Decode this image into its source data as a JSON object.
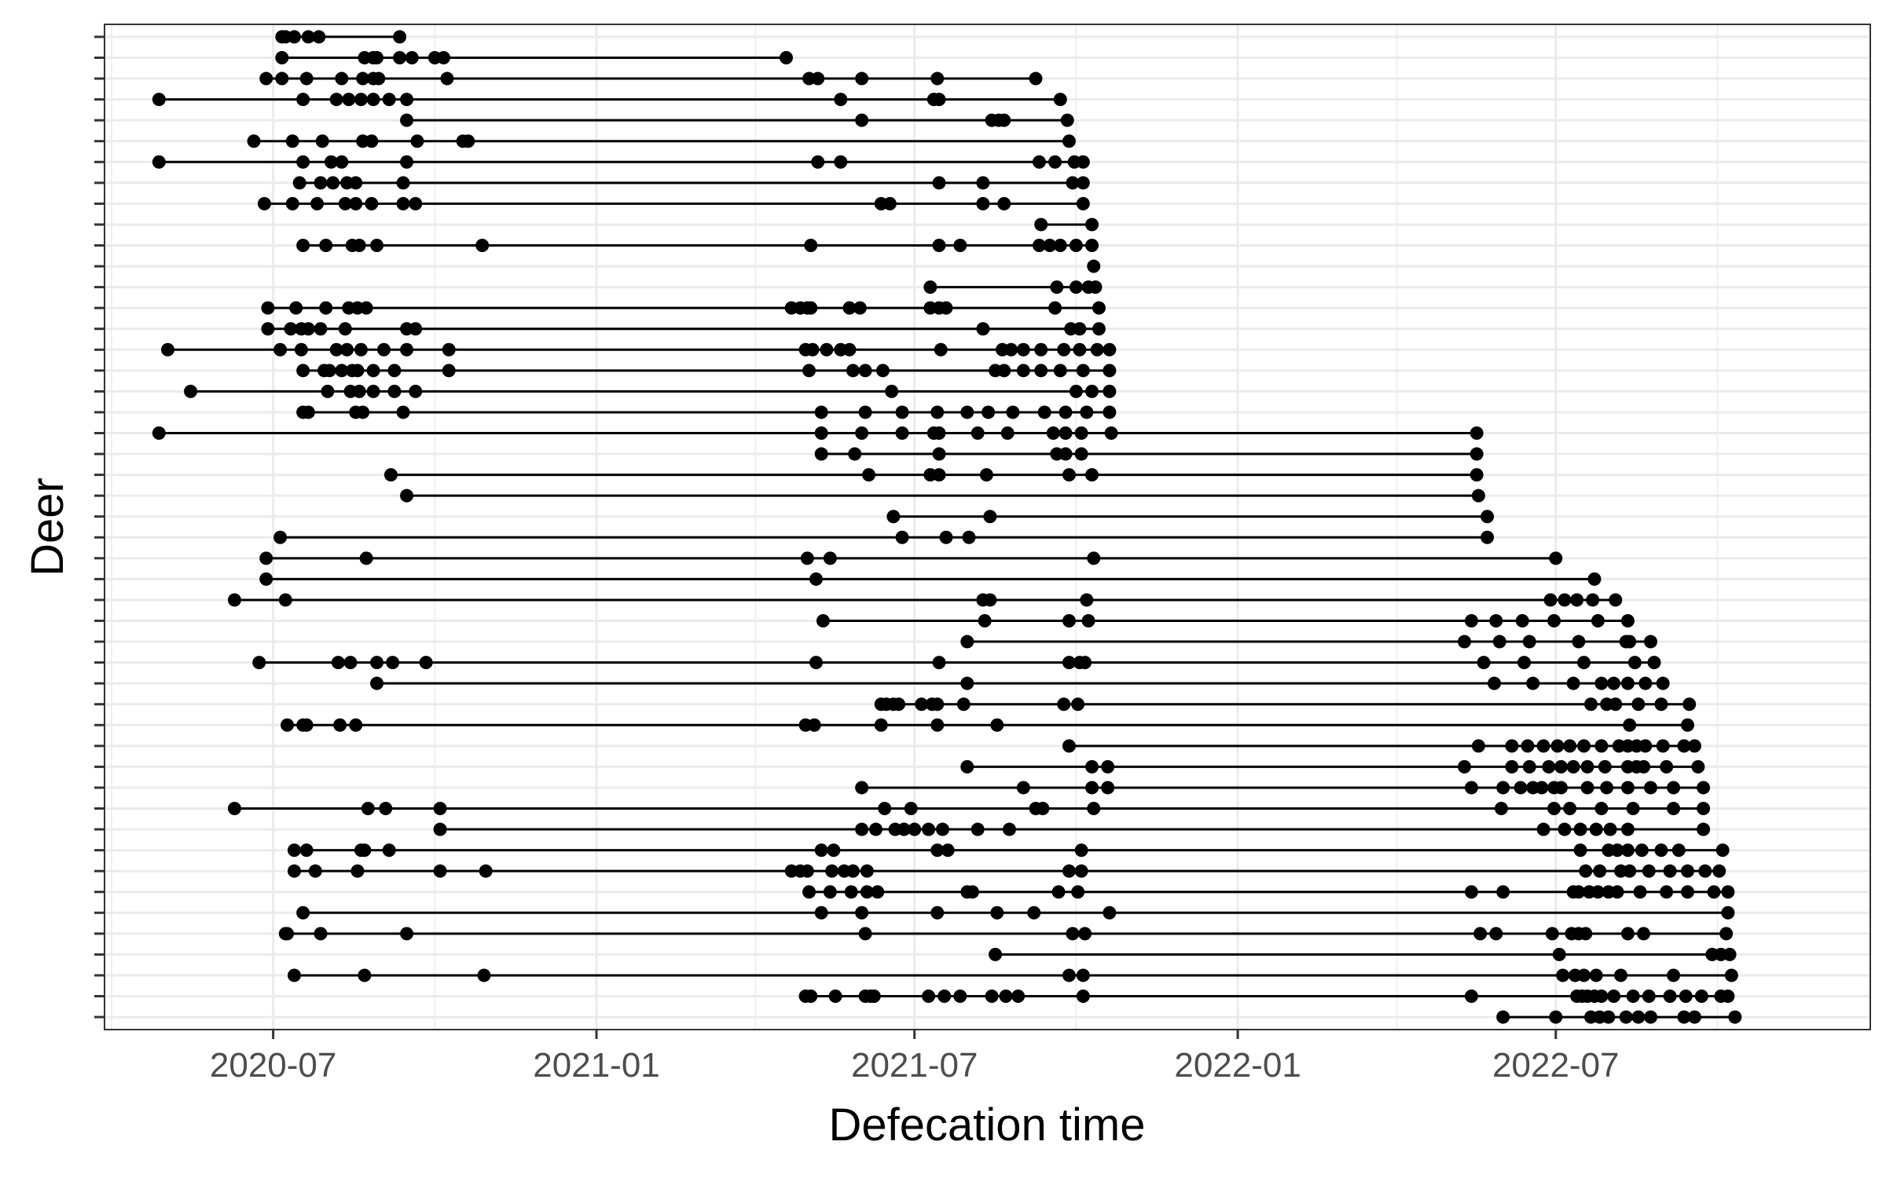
{
  "chart_data": {
    "type": "scatter",
    "title": "",
    "xlabel": "Defecation time",
    "ylabel": "Deer",
    "x_ticks": [
      "2020-07",
      "2021-01",
      "2021-07",
      "2022-01",
      "2022-07"
    ],
    "x_tick_dates": [
      "2020-07-01",
      "2021-01-01",
      "2021-07-01",
      "2022-01-01",
      "2022-07-01"
    ],
    "xlim": [
      "2020-03-27",
      "2022-12-27"
    ],
    "y_tick_labels_visible": false,
    "grid": true,
    "legend": "none",
    "colors": {
      "point": "#000000",
      "line": "#000000",
      "grid": "#ebebeb",
      "panel_border": "#333333",
      "tick_label": "#4d4d4d"
    },
    "series": [
      {
        "x": [
          "2020-07-06",
          "2020-07-08",
          "2020-07-13",
          "2020-07-21",
          "2020-07-27",
          "2020-09-11"
        ]
      },
      {
        "x": [
          "2020-07-06",
          "2020-08-22",
          "2020-08-27",
          "2020-08-29",
          "2020-09-11",
          "2020-09-18",
          "2020-10-01",
          "2020-10-06",
          "2021-04-19"
        ]
      },
      {
        "x": [
          "2020-06-27",
          "2020-07-06",
          "2020-07-20",
          "2020-08-09",
          "2020-08-21",
          "2020-08-27",
          "2020-08-30",
          "2020-10-08",
          "2021-05-02",
          "2021-05-07",
          "2021-06-01",
          "2021-07-14",
          "2021-09-08"
        ]
      },
      {
        "x": [
          "2020-04-27",
          "2020-07-18",
          "2020-08-06",
          "2020-08-13",
          "2020-08-20",
          "2020-08-27",
          "2020-09-05",
          "2020-09-15",
          "2021-05-20",
          "2021-07-12",
          "2021-07-15",
          "2021-09-22"
        ]
      },
      {
        "x": [
          "2020-09-15",
          "2021-06-01",
          "2021-08-14",
          "2021-08-18",
          "2021-08-21",
          "2021-09-26"
        ]
      },
      {
        "x": [
          "2020-06-20",
          "2020-07-12",
          "2020-07-29",
          "2020-08-21",
          "2020-08-26",
          "2020-09-21",
          "2020-10-17",
          "2020-10-20",
          "2021-09-27"
        ]
      },
      {
        "x": [
          "2020-04-27",
          "2020-07-18",
          "2020-08-03",
          "2020-08-09",
          "2020-09-15",
          "2021-05-07",
          "2021-05-20",
          "2021-09-10",
          "2021-09-19",
          "2021-09-30",
          "2021-10-05"
        ]
      },
      {
        "x": [
          "2020-07-16",
          "2020-07-28",
          "2020-08-04",
          "2020-08-12",
          "2020-08-17",
          "2020-09-13",
          "2021-07-15",
          "2021-08-09",
          "2021-09-29",
          "2021-10-05"
        ]
      },
      {
        "x": [
          "2020-06-26",
          "2020-07-12",
          "2020-07-26",
          "2020-08-11",
          "2020-08-17",
          "2020-08-26",
          "2020-09-13",
          "2020-09-20",
          "2021-06-12",
          "2021-06-17",
          "2021-08-09",
          "2021-08-21",
          "2021-10-05"
        ]
      },
      {
        "x": [
          "2021-09-11",
          "2021-10-10"
        ]
      },
      {
        "x": [
          "2020-07-18",
          "2020-07-31",
          "2020-08-15",
          "2020-08-19",
          "2020-08-29",
          "2020-10-28",
          "2021-05-03",
          "2021-07-15",
          "2021-07-27",
          "2021-09-10",
          "2021-09-16",
          "2021-09-22",
          "2021-10-01",
          "2021-10-10"
        ]
      },
      {
        "x": [
          "2021-10-11"
        ]
      },
      {
        "x": [
          "2021-07-10",
          "2021-09-20",
          "2021-10-01",
          "2021-10-08",
          "2021-10-12"
        ]
      },
      {
        "x": [
          "2020-06-28",
          "2020-07-14",
          "2020-07-31",
          "2020-08-13",
          "2020-08-18",
          "2020-08-23",
          "2021-04-22",
          "2021-04-27",
          "2021-05-01",
          "2021-05-03",
          "2021-05-25",
          "2021-05-31",
          "2021-07-10",
          "2021-07-15",
          "2021-07-19",
          "2021-09-19",
          "2021-10-14"
        ]
      },
      {
        "x": [
          "2020-06-28",
          "2020-07-11",
          "2020-07-17",
          "2020-07-21",
          "2020-07-28",
          "2020-08-11",
          "2020-09-15",
          "2020-09-20",
          "2021-08-09",
          "2021-09-28",
          "2021-10-03",
          "2021-10-14"
        ]
      },
      {
        "x": [
          "2020-05-02",
          "2020-07-05",
          "2020-07-17",
          "2020-08-06",
          "2020-08-12",
          "2020-08-20",
          "2020-09-02",
          "2020-09-15",
          "2020-10-09",
          "2021-04-30",
          "2021-05-04",
          "2021-05-12",
          "2021-05-20",
          "2021-05-25",
          "2021-07-16",
          "2021-08-20",
          "2021-08-25",
          "2021-09-01",
          "2021-09-11",
          "2021-09-24",
          "2021-10-03",
          "2021-10-13",
          "2021-10-20"
        ]
      },
      {
        "x": [
          "2020-07-18",
          "2020-07-30",
          "2020-08-02",
          "2020-08-09",
          "2020-08-15",
          "2020-08-18",
          "2020-08-27",
          "2020-09-08",
          "2020-10-09",
          "2021-05-02",
          "2021-05-27",
          "2021-06-03",
          "2021-06-13",
          "2021-08-16",
          "2021-08-21",
          "2021-09-01",
          "2021-09-11",
          "2021-09-22",
          "2021-10-05",
          "2021-10-20"
        ]
      },
      {
        "x": [
          "2020-05-15",
          "2020-08-01",
          "2020-08-14",
          "2020-08-19",
          "2020-08-27",
          "2020-09-08",
          "2020-09-20",
          "2021-06-18",
          "2021-10-01",
          "2021-10-10",
          "2021-10-20"
        ]
      },
      {
        "x": [
          "2020-07-18",
          "2020-07-21",
          "2020-08-17",
          "2020-08-21",
          "2020-09-13",
          "2021-05-09",
          "2021-06-03",
          "2021-06-24",
          "2021-07-14",
          "2021-07-31",
          "2021-08-12",
          "2021-08-26",
          "2021-09-13",
          "2021-09-25",
          "2021-10-07",
          "2021-10-20"
        ]
      },
      {
        "x": [
          "2020-04-27",
          "2021-05-09",
          "2021-06-01",
          "2021-06-24",
          "2021-07-12",
          "2021-07-15",
          "2021-08-06",
          "2021-08-23",
          "2021-09-18",
          "2021-09-25",
          "2021-10-04",
          "2021-10-21",
          "2022-05-17"
        ]
      },
      {
        "x": [
          "2021-05-09",
          "2021-05-28",
          "2021-07-15",
          "2021-09-20",
          "2021-09-25",
          "2021-10-04",
          "2022-05-17"
        ]
      },
      {
        "x": [
          "2020-09-06",
          "2021-06-05",
          "2021-07-10",
          "2021-07-15",
          "2021-08-11",
          "2021-09-27",
          "2021-10-10",
          "2022-05-17"
        ]
      },
      {
        "x": [
          "2020-09-15",
          "2022-05-18"
        ]
      },
      {
        "x": [
          "2021-06-19",
          "2021-08-13",
          "2022-05-23"
        ]
      },
      {
        "x": [
          "2020-07-05",
          "2021-06-24",
          "2021-07-19",
          "2021-08-01",
          "2022-05-23"
        ]
      },
      {
        "x": [
          "2020-06-27",
          "2020-08-23",
          "2021-05-01",
          "2021-05-14",
          "2021-10-11",
          "2022-07-01"
        ]
      },
      {
        "x": [
          "2020-06-27",
          "2021-05-06",
          "2022-07-23"
        ]
      },
      {
        "x": [
          "2020-06-09",
          "2020-07-08",
          "2021-08-09",
          "2021-08-13",
          "2021-10-07",
          "2022-06-28",
          "2022-07-06",
          "2022-07-13",
          "2022-07-22",
          "2022-08-04"
        ]
      },
      {
        "x": [
          "2021-05-10",
          "2021-08-10",
          "2021-09-27",
          "2021-10-08",
          "2022-05-14",
          "2022-05-28",
          "2022-06-12",
          "2022-06-30",
          "2022-07-25",
          "2022-08-11"
        ]
      },
      {
        "x": [
          "2021-07-31",
          "2022-05-10",
          "2022-05-30",
          "2022-06-16",
          "2022-07-14",
          "2022-08-10",
          "2022-08-12",
          "2022-08-24"
        ]
      },
      {
        "x": [
          "2020-06-23",
          "2020-08-07",
          "2020-08-14",
          "2020-08-29",
          "2020-09-07",
          "2020-09-26",
          "2021-05-06",
          "2021-07-15",
          "2021-09-27",
          "2021-10-03",
          "2021-10-06",
          "2022-05-21",
          "2022-06-13",
          "2022-07-17",
          "2022-08-15",
          "2022-08-26"
        ]
      },
      {
        "x": [
          "2020-08-29",
          "2021-07-31",
          "2022-05-27",
          "2022-06-18",
          "2022-07-11",
          "2022-07-27",
          "2022-08-03",
          "2022-08-11",
          "2022-08-21",
          "2022-08-31"
        ]
      },
      {
        "x": [
          "2021-06-12",
          "2021-06-15",
          "2021-06-19",
          "2021-06-22",
          "2021-07-05",
          "2021-07-11",
          "2021-07-14",
          "2021-07-29",
          "2021-09-24",
          "2021-10-02",
          "2022-07-21",
          "2022-07-30",
          "2022-08-04",
          "2022-08-17",
          "2022-08-30",
          "2022-09-15"
        ]
      },
      {
        "x": [
          "2020-07-09",
          "2020-07-18",
          "2020-07-20",
          "2020-08-08",
          "2020-08-17",
          "2021-04-30",
          "2021-05-05",
          "2021-06-12",
          "2021-07-14",
          "2021-08-17",
          "2022-08-12",
          "2022-09-14"
        ]
      },
      {
        "x": [
          "2021-09-27",
          "2022-05-18",
          "2022-06-06",
          "2022-06-15",
          "2022-06-24",
          "2022-07-02",
          "2022-07-09",
          "2022-07-17",
          "2022-07-27",
          "2022-08-06",
          "2022-08-11",
          "2022-08-16",
          "2022-08-21",
          "2022-08-31",
          "2022-09-12",
          "2022-09-18"
        ]
      },
      {
        "x": [
          "2021-07-31",
          "2021-10-10",
          "2021-10-19",
          "2022-05-10",
          "2022-06-06",
          "2022-06-16",
          "2022-06-27",
          "2022-07-04",
          "2022-07-11",
          "2022-07-19",
          "2022-07-29",
          "2022-08-11",
          "2022-08-16",
          "2022-08-20",
          "2022-09-02",
          "2022-09-20"
        ]
      },
      {
        "x": [
          "2021-06-01",
          "2021-09-01",
          "2021-10-10",
          "2021-10-19",
          "2022-05-14",
          "2022-06-01",
          "2022-06-11",
          "2022-06-18",
          "2022-06-23",
          "2022-06-30",
          "2022-07-04",
          "2022-07-19",
          "2022-07-30",
          "2022-08-11",
          "2022-08-24",
          "2022-09-06",
          "2022-09-23"
        ]
      },
      {
        "x": [
          "2020-06-09",
          "2020-08-24",
          "2020-09-03",
          "2020-10-04",
          "2021-06-14",
          "2021-06-29",
          "2021-09-08",
          "2021-09-12",
          "2021-10-11",
          "2022-05-31",
          "2022-06-30",
          "2022-07-09",
          "2022-07-27",
          "2022-08-14",
          "2022-09-06",
          "2022-09-23"
        ]
      },
      {
        "x": [
          "2020-10-04",
          "2021-06-01",
          "2021-06-09",
          "2021-06-20",
          "2021-06-25",
          "2021-07-01",
          "2021-07-09",
          "2021-07-17",
          "2021-08-06",
          "2021-08-24",
          "2022-06-24",
          "2022-07-06",
          "2022-07-15",
          "2022-07-24",
          "2022-08-01",
          "2022-08-11",
          "2022-09-23"
        ]
      },
      {
        "x": [
          "2020-07-13",
          "2020-07-20",
          "2020-08-20",
          "2020-08-22",
          "2020-09-05",
          "2021-05-09",
          "2021-05-16",
          "2021-07-14",
          "2021-07-20",
          "2021-10-04",
          "2022-07-15",
          "2022-07-31",
          "2022-08-05",
          "2022-08-11",
          "2022-08-19",
          "2022-08-30",
          "2022-09-09",
          "2022-10-04"
        ]
      },
      {
        "x": [
          "2020-07-13",
          "2020-07-25",
          "2020-08-18",
          "2020-10-04",
          "2020-10-30",
          "2021-04-22",
          "2021-04-27",
          "2021-05-01",
          "2021-05-15",
          "2021-05-22",
          "2021-05-27",
          "2021-06-04",
          "2021-09-27",
          "2021-10-04",
          "2022-07-18",
          "2022-07-26",
          "2022-08-07",
          "2022-08-12",
          "2022-08-23",
          "2022-09-04",
          "2022-09-14",
          "2022-09-24",
          "2022-10-02"
        ]
      },
      {
        "x": [
          "2021-05-02",
          "2021-05-14",
          "2021-05-26",
          "2021-06-04",
          "2021-06-10",
          "2021-07-31",
          "2021-08-03",
          "2021-09-21",
          "2021-10-02",
          "2022-05-14",
          "2022-06-01",
          "2022-07-11",
          "2022-07-14",
          "2022-07-20",
          "2022-07-25",
          "2022-07-31",
          "2022-08-05",
          "2022-08-18",
          "2022-09-02",
          "2022-09-14",
          "2022-09-29",
          "2022-10-07"
        ]
      },
      {
        "x": [
          "2020-07-18",
          "2021-05-09",
          "2021-06-01",
          "2021-07-14",
          "2021-08-17",
          "2021-09-07",
          "2021-10-20",
          "2022-10-07"
        ]
      },
      {
        "x": [
          "2020-07-08",
          "2020-07-09",
          "2020-07-28",
          "2020-09-15",
          "2021-06-03",
          "2021-09-29",
          "2021-10-06",
          "2022-05-19",
          "2022-05-28",
          "2022-06-29",
          "2022-07-10",
          "2022-07-14",
          "2022-07-18",
          "2022-08-11",
          "2022-08-20",
          "2022-10-06"
        ]
      },
      {
        "x": [
          "2021-08-16",
          "2022-07-03",
          "2022-09-28",
          "2022-10-03",
          "2022-10-08"
        ]
      },
      {
        "x": [
          "2020-07-13",
          "2020-08-22",
          "2020-10-29",
          "2021-09-27",
          "2021-10-05",
          "2022-07-05",
          "2022-07-12",
          "2022-07-17",
          "2022-07-24",
          "2022-08-07",
          "2022-09-06",
          "2022-10-09"
        ]
      },
      {
        "x": [
          "2021-04-30",
          "2021-05-03",
          "2021-05-17",
          "2021-06-03",
          "2021-06-06",
          "2021-06-08",
          "2021-07-09",
          "2021-07-18",
          "2021-07-27",
          "2021-08-14",
          "2021-08-22",
          "2021-08-29",
          "2021-10-05",
          "2022-05-14",
          "2022-07-13",
          "2022-07-16",
          "2022-07-19",
          "2022-07-23",
          "2022-07-27",
          "2022-08-03",
          "2022-08-14",
          "2022-08-23",
          "2022-09-04",
          "2022-09-13",
          "2022-09-22",
          "2022-10-03",
          "2022-10-07"
        ]
      },
      {
        "x": [
          "2022-06-01",
          "2022-07-01",
          "2022-07-21",
          "2022-07-26",
          "2022-07-31",
          "2022-08-10",
          "2022-08-17",
          "2022-08-24",
          "2022-09-12",
          "2022-09-18",
          "2022-10-11"
        ]
      }
    ]
  }
}
